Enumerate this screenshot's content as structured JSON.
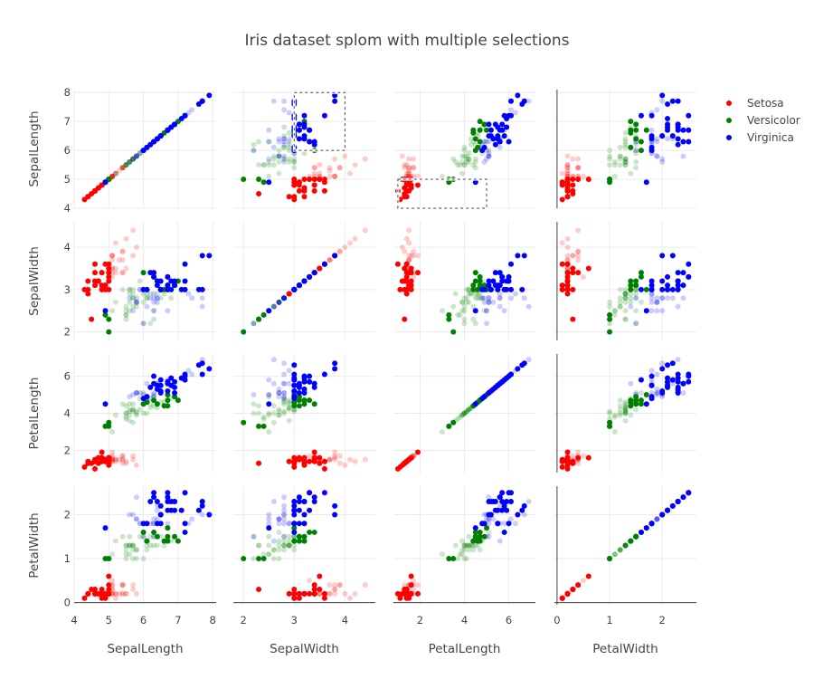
{
  "chart_data": {
    "type": "scatter",
    "title": "Iris dataset splom with multiple selections",
    "dimensions": [
      "SepalLength",
      "SepalWidth",
      "PetalLength",
      "PetalWidth"
    ],
    "axis_ranges": {
      "SepalLength": [
        4,
        8.1
      ],
      "SepalWidth": [
        1.8,
        4.6
      ],
      "PetalLength": [
        0.8,
        7.2
      ],
      "PetalWidth": [
        -0.05,
        2.65
      ]
    },
    "axis_ticks": {
      "SepalLength": [
        4,
        5,
        6,
        7,
        8
      ],
      "SepalWidth": [
        2,
        3,
        4
      ],
      "PetalLength": [
        2,
        4,
        6
      ],
      "PetalWidth": [
        0,
        1,
        2
      ]
    },
    "selections": [
      {
        "x_dim": "SepalWidth",
        "y_dim": "SepalLength",
        "x_range": [
          3.0,
          4.0
        ],
        "y_range": [
          6.0,
          8.0
        ]
      },
      {
        "x_dim": "PetalLength",
        "y_dim": "SepalLength",
        "x_range": [
          1.0,
          5.0
        ],
        "y_range": [
          4.0,
          5.0
        ]
      }
    ],
    "legend_position": "top-right",
    "grid": true,
    "series": [
      {
        "name": "Setosa",
        "color": "#ff0000",
        "points": [
          [
            5.1,
            3.5,
            1.4,
            0.2
          ],
          [
            4.9,
            3.0,
            1.4,
            0.2
          ],
          [
            4.7,
            3.2,
            1.3,
            0.2
          ],
          [
            4.6,
            3.1,
            1.5,
            0.2
          ],
          [
            5.0,
            3.6,
            1.4,
            0.2
          ],
          [
            5.4,
            3.9,
            1.7,
            0.4
          ],
          [
            4.6,
            3.4,
            1.4,
            0.3
          ],
          [
            5.0,
            3.4,
            1.5,
            0.2
          ],
          [
            4.4,
            2.9,
            1.4,
            0.2
          ],
          [
            4.9,
            3.1,
            1.5,
            0.1
          ],
          [
            5.4,
            3.7,
            1.5,
            0.2
          ],
          [
            4.8,
            3.4,
            1.6,
            0.2
          ],
          [
            4.8,
            3.0,
            1.4,
            0.1
          ],
          [
            4.3,
            3.0,
            1.1,
            0.1
          ],
          [
            5.8,
            4.0,
            1.2,
            0.2
          ],
          [
            5.7,
            4.4,
            1.5,
            0.4
          ],
          [
            5.4,
            3.9,
            1.3,
            0.4
          ],
          [
            5.1,
            3.5,
            1.4,
            0.3
          ],
          [
            5.7,
            3.8,
            1.7,
            0.3
          ],
          [
            5.1,
            3.8,
            1.5,
            0.3
          ],
          [
            5.4,
            3.4,
            1.7,
            0.2
          ],
          [
            5.1,
            3.7,
            1.5,
            0.4
          ],
          [
            4.6,
            3.6,
            1.0,
            0.2
          ],
          [
            5.1,
            3.3,
            1.7,
            0.5
          ],
          [
            4.8,
            3.4,
            1.9,
            0.2
          ],
          [
            5.0,
            3.0,
            1.6,
            0.2
          ],
          [
            5.0,
            3.4,
            1.6,
            0.4
          ],
          [
            5.2,
            3.5,
            1.5,
            0.2
          ],
          [
            5.2,
            3.4,
            1.4,
            0.2
          ],
          [
            4.7,
            3.2,
            1.6,
            0.2
          ],
          [
            4.8,
            3.1,
            1.6,
            0.2
          ],
          [
            5.4,
            3.4,
            1.5,
            0.4
          ],
          [
            5.2,
            4.1,
            1.5,
            0.1
          ],
          [
            5.5,
            4.2,
            1.4,
            0.2
          ],
          [
            4.9,
            3.1,
            1.5,
            0.2
          ],
          [
            5.0,
            3.2,
            1.2,
            0.2
          ],
          [
            5.5,
            3.5,
            1.3,
            0.2
          ],
          [
            4.9,
            3.6,
            1.4,
            0.1
          ],
          [
            4.4,
            3.0,
            1.3,
            0.2
          ],
          [
            5.1,
            3.4,
            1.5,
            0.2
          ],
          [
            5.0,
            3.5,
            1.3,
            0.3
          ],
          [
            4.5,
            2.3,
            1.3,
            0.3
          ],
          [
            4.4,
            3.2,
            1.3,
            0.2
          ],
          [
            5.0,
            3.5,
            1.6,
            0.6
          ],
          [
            5.1,
            3.8,
            1.9,
            0.4
          ],
          [
            4.8,
            3.0,
            1.4,
            0.3
          ],
          [
            5.1,
            3.8,
            1.6,
            0.2
          ],
          [
            4.6,
            3.2,
            1.4,
            0.2
          ],
          [
            5.3,
            3.7,
            1.5,
            0.2
          ],
          [
            5.0,
            3.3,
            1.4,
            0.2
          ]
        ]
      },
      {
        "name": "Versicolor",
        "color": "#008000",
        "points": [
          [
            7.0,
            3.2,
            4.7,
            1.4
          ],
          [
            6.4,
            3.2,
            4.5,
            1.5
          ],
          [
            6.9,
            3.1,
            4.9,
            1.5
          ],
          [
            5.5,
            2.3,
            4.0,
            1.3
          ],
          [
            6.5,
            2.8,
            4.6,
            1.5
          ],
          [
            5.7,
            2.8,
            4.5,
            1.3
          ],
          [
            6.3,
            3.3,
            4.7,
            1.6
          ],
          [
            4.9,
            2.4,
            3.3,
            1.0
          ],
          [
            6.6,
            2.9,
            4.6,
            1.3
          ],
          [
            5.2,
            2.7,
            3.9,
            1.4
          ],
          [
            5.0,
            2.0,
            3.5,
            1.0
          ],
          [
            5.9,
            3.0,
            4.2,
            1.5
          ],
          [
            6.0,
            2.2,
            4.0,
            1.0
          ],
          [
            6.1,
            2.9,
            4.7,
            1.4
          ],
          [
            5.6,
            2.9,
            3.6,
            1.3
          ],
          [
            6.7,
            3.1,
            4.4,
            1.4
          ],
          [
            5.6,
            3.0,
            4.5,
            1.5
          ],
          [
            5.8,
            2.7,
            4.1,
            1.0
          ],
          [
            6.2,
            2.2,
            4.5,
            1.5
          ],
          [
            5.6,
            2.5,
            3.9,
            1.1
          ],
          [
            5.9,
            3.2,
            4.8,
            1.8
          ],
          [
            6.1,
            2.8,
            4.0,
            1.3
          ],
          [
            6.3,
            2.5,
            4.9,
            1.5
          ],
          [
            6.1,
            2.8,
            4.7,
            1.2
          ],
          [
            6.4,
            2.9,
            4.3,
            1.3
          ],
          [
            6.6,
            3.0,
            4.4,
            1.4
          ],
          [
            6.8,
            2.8,
            4.8,
            1.4
          ],
          [
            6.7,
            3.0,
            5.0,
            1.7
          ],
          [
            6.0,
            2.9,
            4.5,
            1.5
          ],
          [
            5.7,
            2.6,
            3.5,
            1.0
          ],
          [
            5.5,
            2.4,
            3.8,
            1.1
          ],
          [
            5.5,
            2.4,
            3.7,
            1.0
          ],
          [
            5.8,
            2.7,
            3.9,
            1.2
          ],
          [
            6.0,
            2.7,
            5.1,
            1.6
          ],
          [
            5.4,
            3.0,
            4.5,
            1.5
          ],
          [
            6.0,
            3.4,
            4.5,
            1.6
          ],
          [
            6.7,
            3.1,
            4.7,
            1.5
          ],
          [
            6.3,
            2.3,
            4.4,
            1.3
          ],
          [
            5.6,
            3.0,
            4.1,
            1.3
          ],
          [
            5.5,
            2.5,
            4.0,
            1.3
          ],
          [
            5.5,
            2.6,
            4.4,
            1.2
          ],
          [
            6.1,
            3.0,
            4.6,
            1.4
          ],
          [
            5.8,
            2.6,
            4.0,
            1.2
          ],
          [
            5.0,
            2.3,
            3.3,
            1.0
          ],
          [
            5.6,
            2.7,
            4.2,
            1.3
          ],
          [
            5.7,
            3.0,
            4.2,
            1.2
          ],
          [
            5.7,
            2.9,
            4.2,
            1.3
          ],
          [
            6.2,
            2.9,
            4.3,
            1.3
          ],
          [
            5.1,
            2.5,
            3.0,
            1.1
          ],
          [
            5.7,
            2.8,
            4.1,
            1.3
          ]
        ]
      },
      {
        "name": "Virginica",
        "color": "#0000ff",
        "points": [
          [
            6.3,
            3.3,
            6.0,
            2.5
          ],
          [
            5.8,
            2.7,
            5.1,
            1.9
          ],
          [
            7.1,
            3.0,
            5.9,
            2.1
          ],
          [
            6.3,
            2.9,
            5.6,
            1.8
          ],
          [
            6.5,
            3.0,
            5.8,
            2.2
          ],
          [
            7.6,
            3.0,
            6.6,
            2.1
          ],
          [
            4.9,
            2.5,
            4.5,
            1.7
          ],
          [
            7.3,
            2.9,
            6.3,
            1.8
          ],
          [
            6.7,
            2.5,
            5.8,
            1.8
          ],
          [
            7.2,
            3.6,
            6.1,
            2.5
          ],
          [
            6.5,
            3.2,
            5.1,
            2.0
          ],
          [
            6.4,
            2.7,
            5.3,
            1.9
          ],
          [
            6.8,
            3.0,
            5.5,
            2.1
          ],
          [
            5.7,
            2.5,
            5.0,
            2.0
          ],
          [
            5.8,
            2.8,
            5.1,
            2.4
          ],
          [
            6.4,
            3.2,
            5.3,
            2.3
          ],
          [
            6.5,
            3.0,
            5.5,
            1.8
          ],
          [
            7.7,
            3.8,
            6.7,
            2.2
          ],
          [
            7.7,
            2.6,
            6.9,
            2.3
          ],
          [
            6.0,
            2.2,
            5.0,
            1.5
          ],
          [
            6.9,
            3.2,
            5.7,
            2.3
          ],
          [
            5.6,
            2.8,
            4.9,
            2.0
          ],
          [
            7.7,
            2.8,
            6.7,
            2.0
          ],
          [
            6.3,
            2.7,
            4.9,
            1.8
          ],
          [
            6.7,
            3.3,
            5.7,
            2.1
          ],
          [
            7.2,
            3.2,
            6.0,
            1.8
          ],
          [
            6.2,
            2.8,
            4.8,
            1.8
          ],
          [
            6.1,
            3.0,
            4.9,
            1.8
          ],
          [
            6.4,
            2.8,
            5.6,
            2.1
          ],
          [
            7.2,
            3.0,
            5.8,
            1.6
          ],
          [
            7.4,
            2.8,
            6.1,
            1.9
          ],
          [
            7.9,
            3.8,
            6.4,
            2.0
          ],
          [
            6.4,
            2.8,
            5.6,
            2.2
          ],
          [
            6.3,
            2.8,
            5.1,
            1.5
          ],
          [
            6.1,
            2.6,
            5.6,
            1.4
          ],
          [
            7.7,
            3.0,
            6.1,
            2.3
          ],
          [
            6.3,
            3.4,
            5.6,
            2.4
          ],
          [
            6.4,
            3.1,
            5.5,
            1.8
          ],
          [
            6.0,
            3.0,
            4.8,
            1.8
          ],
          [
            6.9,
            3.1,
            5.4,
            2.1
          ],
          [
            6.7,
            3.1,
            5.6,
            2.4
          ],
          [
            6.9,
            3.1,
            5.1,
            2.3
          ],
          [
            5.8,
            2.7,
            5.1,
            1.9
          ],
          [
            6.8,
            3.2,
            5.9,
            2.3
          ],
          [
            6.7,
            3.3,
            5.7,
            2.5
          ],
          [
            6.7,
            3.0,
            5.2,
            2.3
          ],
          [
            6.3,
            2.5,
            5.0,
            1.9
          ],
          [
            6.5,
            3.0,
            5.2,
            2.0
          ],
          [
            6.2,
            3.4,
            5.4,
            2.3
          ],
          [
            5.9,
            3.0,
            5.1,
            1.8
          ]
        ]
      }
    ]
  }
}
